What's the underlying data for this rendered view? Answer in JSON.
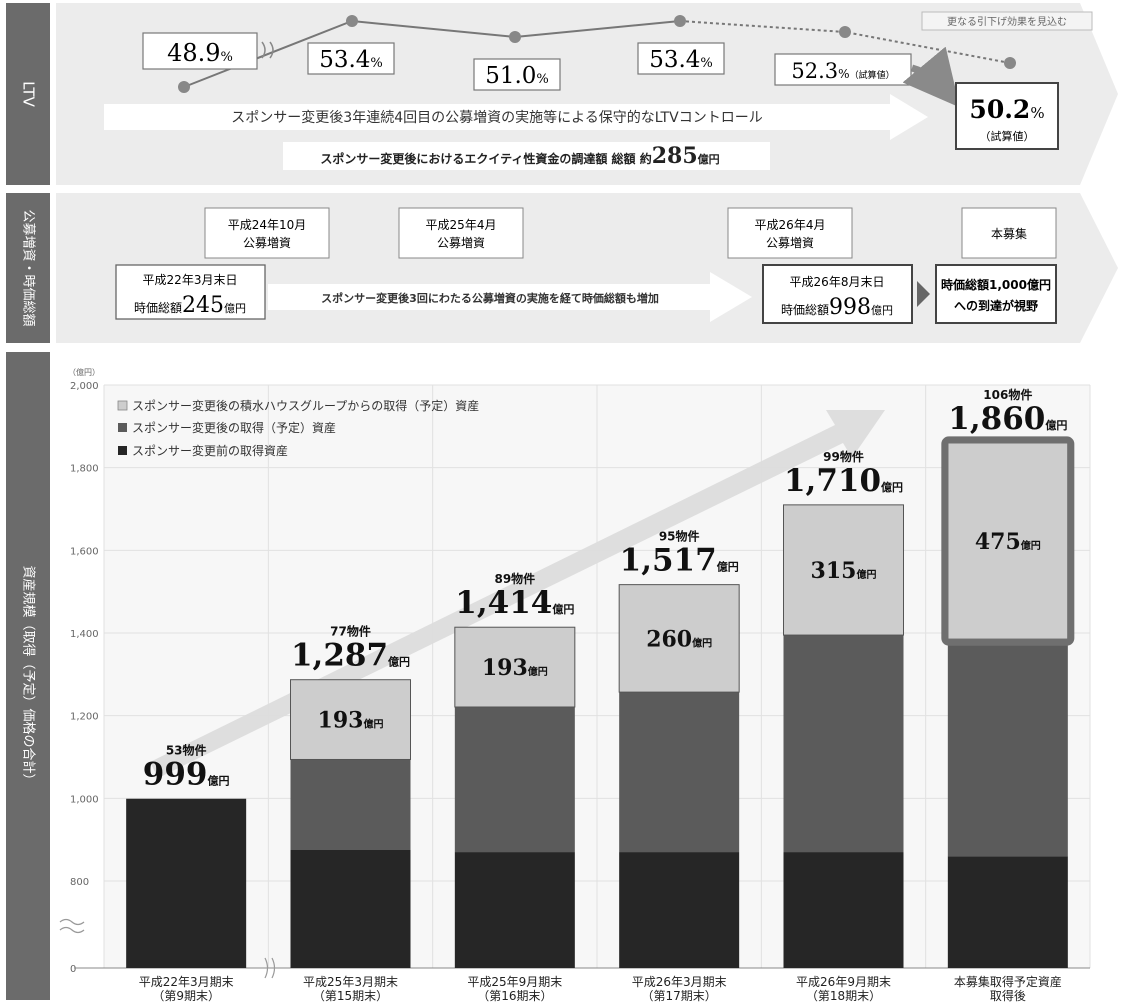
{
  "section_labels": {
    "ltv": "LTV",
    "offering": "公募増資・時価総額",
    "asset": "資産規模（取得（予定）価格の合計）"
  },
  "ltv": {
    "points": [
      {
        "value": "48.9",
        "unit": "%",
        "note": ""
      },
      {
        "value": "53.4",
        "unit": "%",
        "note": ""
      },
      {
        "value": "51.0",
        "unit": "%",
        "note": ""
      },
      {
        "value": "53.4",
        "unit": "%",
        "note": ""
      },
      {
        "value": "52.3",
        "unit": "%",
        "note": "（試算値）"
      }
    ],
    "final": {
      "value": "50.2",
      "unit": "%",
      "note": "（試算値）"
    },
    "arrow_text": "スポンサー変更後3年連続4回目の公募増資の実施等による保守的なLTVコントロール",
    "equity_text": "スポンサー変更後におけるエクイティ性資金の調達額 総額 約",
    "equity_amount": "285",
    "equity_unit": "億円",
    "further_note": "更なる引下げ効果を見込む"
  },
  "offering": {
    "events": [
      {
        "line1": "平成24年10月",
        "line2": "公募増資"
      },
      {
        "line1": "平成25年4月",
        "line2": "公募増資"
      },
      {
        "line1": "平成26年4月",
        "line2": "公募増資"
      }
    ],
    "current_label": "本募集",
    "start": {
      "line1": "平成22年3月末日",
      "prefix": "時価総額",
      "amount": "245",
      "unit": "億円"
    },
    "middle_text": "スポンサー変更後3回にわたる公募増資の実施を経て時価総額も増加",
    "end": {
      "line1": "平成26年8月末日",
      "prefix": "時価総額",
      "amount": "998",
      "unit": "億円"
    },
    "goal": {
      "line1": "時価総額1,000億円",
      "line2": "への到達が視野"
    }
  },
  "chart_data": {
    "type": "bar",
    "stacked": true,
    "yunit": "（億円）",
    "yticks": [
      "0",
      "800",
      "1,000",
      "1,200",
      "1,400",
      "1,600",
      "1,800",
      "2,000"
    ],
    "ylim": [
      0,
      2000
    ],
    "axis_break": true,
    "legend_position": "top-left",
    "legend": [
      {
        "label": "スポンサー変更後の積水ハウスグループからの取得（予定）資産",
        "color": "#cdcdcd"
      },
      {
        "label": "スポンサー変更後の取得（予定）資産",
        "color": "#5b5b5b"
      },
      {
        "label": "スポンサー変更前の取得資産",
        "color": "#262626"
      }
    ],
    "categories": [
      {
        "line1": "平成22年3月期末",
        "line2": "（第9期末）"
      },
      {
        "line1": "平成25年3月期末",
        "line2": "（第15期末）"
      },
      {
        "line1": "平成25年9月期末",
        "line2": "（第16期末）"
      },
      {
        "line1": "平成26年3月期末",
        "line2": "（第17期末）"
      },
      {
        "line1": "平成26年9月期末",
        "line2": "（第18期末）"
      },
      {
        "line1": "本募集取得予定資産",
        "line2": "取得後"
      }
    ],
    "series": [
      {
        "name": "スポンサー変更前の取得資産",
        "values": [
          999,
          875,
          870,
          870,
          870,
          860
        ]
      },
      {
        "name": "スポンサー変更後の取得（予定）資産",
        "values": [
          0,
          219,
          351,
          387,
          525,
          525
        ]
      },
      {
        "name": "スポンサー変更後の積水ハウスグループからの取得（予定）資産",
        "values": [
          0,
          193,
          193,
          260,
          315,
          475
        ]
      }
    ],
    "totals": [
      "999",
      "1,287",
      "1,414",
      "1,517",
      "1,710",
      "1,860"
    ],
    "properties": [
      "53物件",
      "77物件",
      "89物件",
      "95物件",
      "99物件",
      "106物件"
    ],
    "sekisui_labels": [
      "",
      "193",
      "193",
      "260",
      "315",
      "475"
    ],
    "unit": "億円",
    "highlight_last": true
  }
}
